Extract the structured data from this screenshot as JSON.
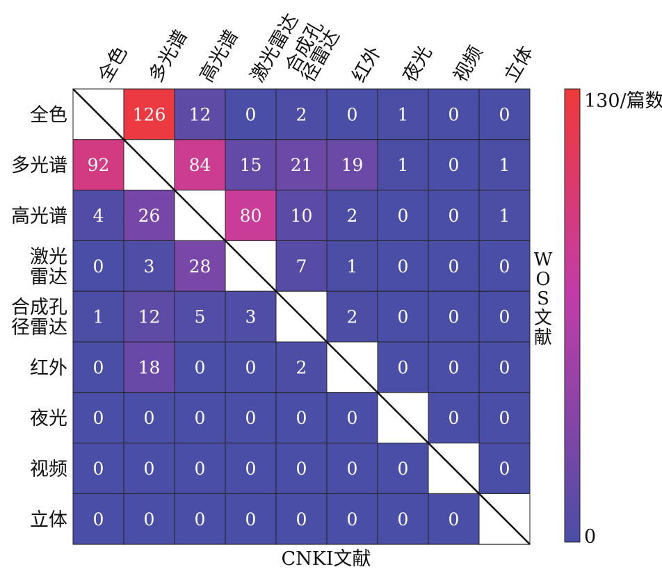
{
  "chart_data": {
    "type": "heatmap",
    "row_labels": [
      [
        "全色"
      ],
      [
        "多光谱"
      ],
      [
        "高光谱"
      ],
      [
        "激光",
        "雷达"
      ],
      [
        "合成孔",
        "径雷达"
      ],
      [
        "红外"
      ],
      [
        "夜光"
      ],
      [
        "视频"
      ],
      [
        "立体"
      ]
    ],
    "col_labels": [
      [
        "全色"
      ],
      [
        "多光谱"
      ],
      [
        "高光谱"
      ],
      [
        "激光雷达"
      ],
      [
        "合成孔",
        "径雷达"
      ],
      [
        "红外"
      ],
      [
        "夜光"
      ],
      [
        "视频"
      ],
      [
        "立体"
      ]
    ],
    "values": [
      [
        null,
        126,
        12,
        0,
        2,
        0,
        1,
        0,
        0
      ],
      [
        92,
        null,
        84,
        15,
        21,
        19,
        1,
        0,
        1
      ],
      [
        4,
        26,
        null,
        80,
        10,
        2,
        0,
        0,
        1
      ],
      [
        0,
        3,
        28,
        null,
        7,
        1,
        0,
        0,
        0
      ],
      [
        1,
        12,
        5,
        3,
        null,
        2,
        0,
        0,
        0
      ],
      [
        0,
        18,
        0,
        0,
        2,
        null,
        0,
        0,
        0
      ],
      [
        0,
        0,
        0,
        0,
        0,
        0,
        null,
        0,
        0
      ],
      [
        0,
        0,
        0,
        0,
        0,
        0,
        0,
        null,
        0
      ],
      [
        0,
        0,
        0,
        0,
        0,
        0,
        0,
        0,
        null
      ]
    ],
    "xlabel": "CNKI文献",
    "ylabel": "WOS文献",
    "colorbar": {
      "min_label": "0",
      "max_label": "130/篇数",
      "range": [
        0,
        130
      ]
    },
    "colors": {
      "low": "#4a4ea6",
      "mid": "#c23ca8",
      "high": "#ef3a3a",
      "border": "#222222",
      "diagonal": "#ffffff"
    }
  }
}
